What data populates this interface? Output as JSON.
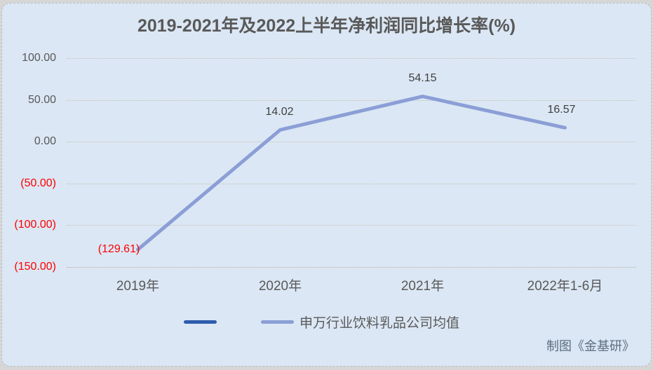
{
  "chart_data": {
    "type": "line",
    "title": "2019-2021年及2022上半年净利润同比增长率(%)",
    "categories": [
      "2019年",
      "2020年",
      "2021年",
      "2022年1-6月"
    ],
    "series": [
      {
        "name": "",
        "color": "#2e5cac",
        "values": []
      },
      {
        "name": "申万行业饮料乳品公司均值",
        "color": "#8b9ed6",
        "values": [
          -129.61,
          14.02,
          54.15,
          16.57
        ],
        "data_labels": [
          "(129.61)",
          "14.02",
          "54.15",
          "16.57"
        ]
      }
    ],
    "ylim": [
      -150,
      100
    ],
    "yticks": [
      100,
      50,
      0,
      -50,
      -100,
      -150
    ],
    "ytick_labels": [
      "100.00",
      "50.00",
      "0.00",
      "(50.00)",
      "(100.00)",
      "(150.00)"
    ],
    "grid": true,
    "legend_position": "bottom",
    "colors": {
      "background": "#dbe7f4",
      "title": "#595959",
      "axis_label": "#595959",
      "negative": "#ff0000",
      "data_label": "#3f3f3f",
      "line": "#8b9ed6",
      "legend_series1": "#2e5cac"
    }
  },
  "footer": {
    "watermark": "制图《金基研》"
  }
}
